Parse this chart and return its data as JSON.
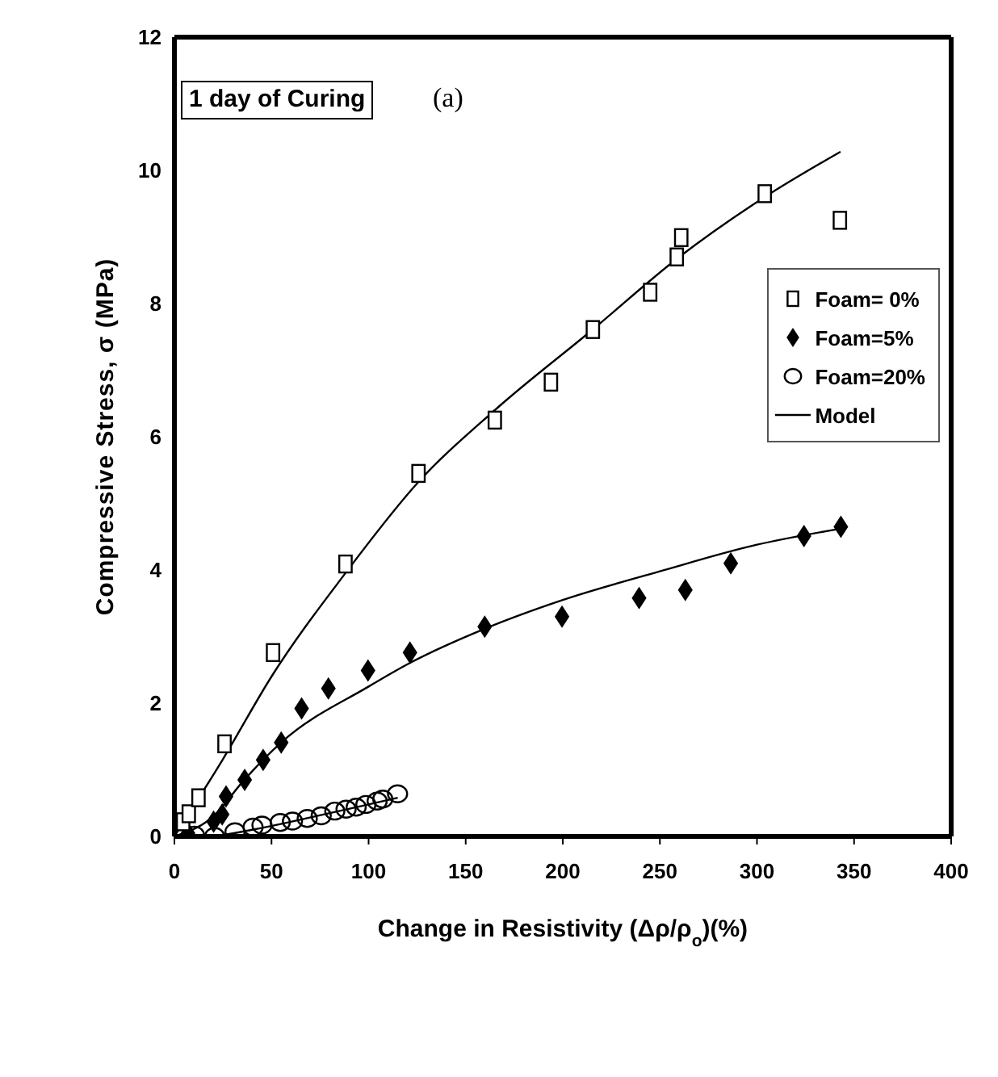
{
  "chart_data": {
    "type": "scatter",
    "xlabel": "Change in Resistivity (Δρ/ρ$_{o}$)(%)",
    "ylabel": "Compressive Stress, σ (MPa)",
    "annotations": [
      "1 day of Curing",
      "(a)"
    ],
    "xlim": [
      0,
      400
    ],
    "xticks": [
      0,
      50,
      100,
      150,
      200,
      250,
      300,
      350,
      400
    ],
    "ylim": [
      0,
      12
    ],
    "yticks": [
      0,
      2,
      4,
      6,
      8,
      10,
      12
    ],
    "legend": "right",
    "series": [
      {
        "name": "Foam= 0%",
        "marker": "square",
        "color": "#000000",
        "x": [
          4.5,
          7.4,
          12.4,
          25.8,
          50.8,
          88.1,
          125.7,
          165,
          193.9,
          215.5,
          245,
          258.7,
          261,
          304,
          342.7
        ],
        "values": [
          0.22,
          0.34,
          0.58,
          1.39,
          2.76,
          4.09,
          5.45,
          6.25,
          6.82,
          7.61,
          8.17,
          8.7,
          8.99,
          9.65,
          9.25
        ]
      },
      {
        "name": "Foam=5%",
        "marker": "diamond",
        "color": "#000000",
        "x": [
          7,
          20.2,
          24.6,
          26.6,
          36.2,
          45.7,
          55,
          65.5,
          79.3,
          99.7,
          121.3,
          159.8,
          199.6,
          239.3,
          263.1,
          286.5,
          324.2,
          343.2
        ],
        "values": [
          0.05,
          0.22,
          0.33,
          0.6,
          0.85,
          1.15,
          1.41,
          1.92,
          2.22,
          2.49,
          2.76,
          3.15,
          3.3,
          3.58,
          3.7,
          4.1,
          4.51,
          4.65
        ]
      },
      {
        "name": "Foam=20%",
        "marker": "circle",
        "color": "#000000",
        "x": [
          10.3,
          20.7,
          31.2,
          40.5,
          45.1,
          54.5,
          60.8,
          68.4,
          75.6,
          82.6,
          88.4,
          93.6,
          98.6,
          104.4,
          107.3,
          114.9
        ],
        "values": [
          0.02,
          0,
          0.07,
          0.14,
          0.17,
          0.21,
          0.23,
          0.27,
          0.31,
          0.38,
          0.41,
          0.44,
          0.48,
          0.53,
          0.56,
          0.64
        ]
      },
      {
        "name": "Model",
        "type": "line",
        "marker": "none",
        "color": "#000000",
        "x": [
          0,
          25,
          50,
          88,
          125,
          165,
          215,
          260,
          304,
          343
        ],
        "values": [
          0,
          1.16,
          2.4,
          3.95,
          5.3,
          6.4,
          7.6,
          8.7,
          9.6,
          10.28
        ]
      },
      {
        "type": "line",
        "marker": "none",
        "color": "#000000",
        "x": [
          0,
          20,
          36,
          55,
          100,
          121,
          160,
          200,
          250,
          300,
          343
        ],
        "values": [
          0,
          0.3,
          0.85,
          1.41,
          2.25,
          2.6,
          3.12,
          3.55,
          3.98,
          4.38,
          4.62
        ]
      },
      {
        "type": "line",
        "marker": "none",
        "color": "#000000",
        "x": [
          0,
          20,
          40,
          60,
          80,
          100,
          115
        ],
        "values": [
          0,
          0.01,
          0.1,
          0.22,
          0.35,
          0.48,
          0.58
        ]
      }
    ]
  }
}
